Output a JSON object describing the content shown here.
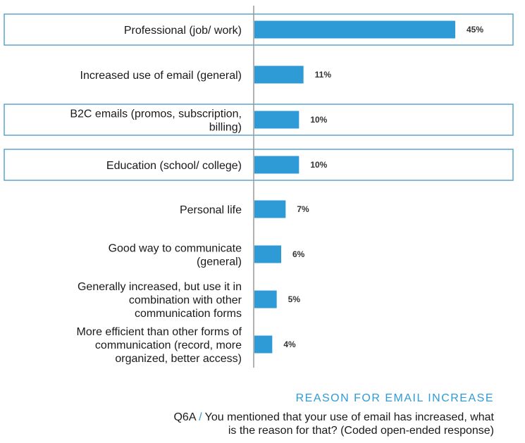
{
  "chart_data": {
    "type": "bar",
    "orientation": "horizontal",
    "categories": [
      "Professional (job/ work)",
      "Increased use of email (general)",
      "B2C emails (promos, subscription, billing)",
      "Education (school/ college)",
      "Personal life",
      "Good way to communicate (general)",
      "Generally increased, but use it in combination with other communication forms",
      "More efficient than other forms of communication (record, more organized, better access)"
    ],
    "category_lines": [
      [
        "Professional (job/ work)"
      ],
      [
        "Increased use of email (general)"
      ],
      [
        "B2C emails (promos, subscription,",
        "billing)"
      ],
      [
        "Education (school/ college)"
      ],
      [
        "Personal life"
      ],
      [
        "Good way to communicate",
        "(general)"
      ],
      [
        "Generally increased, but use it in",
        "combination with other",
        "communication forms"
      ],
      [
        "More efficient than other forms of",
        "communication (record, more",
        "organized, better access)"
      ]
    ],
    "values": [
      45,
      11,
      10,
      10,
      7,
      6,
      5,
      4
    ],
    "value_labels": [
      "45%",
      "11%",
      "10%",
      "10%",
      "7%",
      "6%",
      "5%",
      "4%"
    ],
    "highlighted": [
      true,
      false,
      true,
      true,
      false,
      false,
      false,
      false
    ],
    "bar_color": "#2f9bd6",
    "highlight_border_color": "#5aa6cf",
    "xlim": [
      0,
      50
    ],
    "grid": false,
    "title": "REASON FOR EMAIL INCREASE"
  },
  "caption": {
    "title": "REASON FOR EMAIL INCREASE",
    "question_id": "Q6A",
    "separator": "/",
    "question": "You mentioned that your use of email has increased, what is the reason for that? (Coded open-ended response)"
  }
}
